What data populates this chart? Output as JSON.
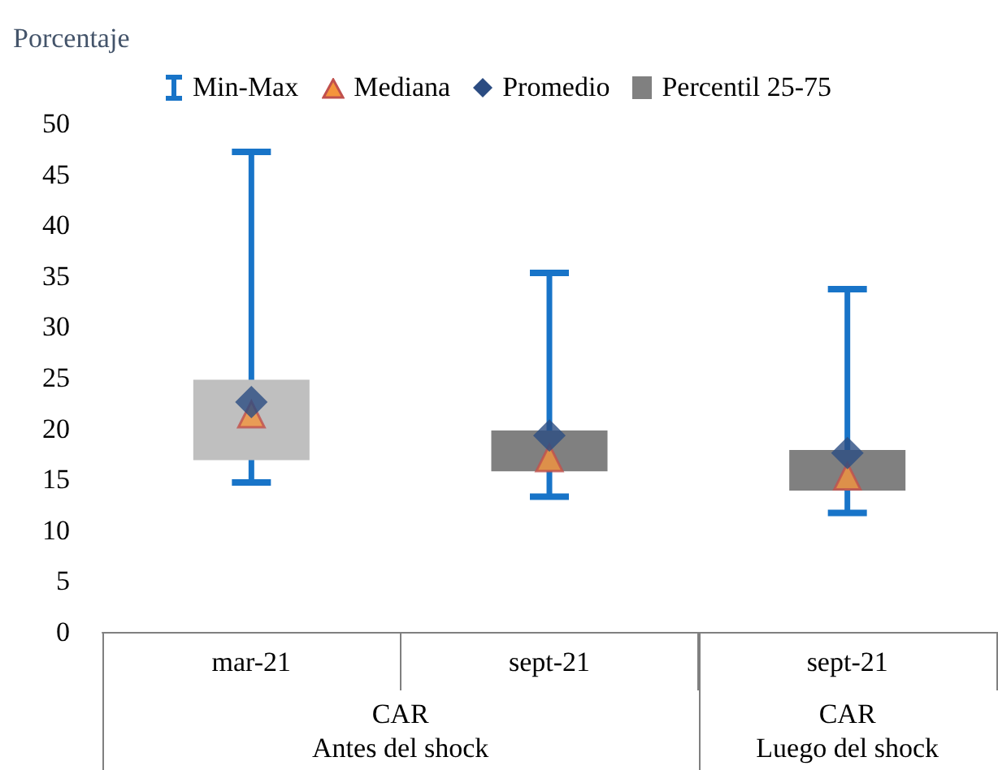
{
  "chart_data": {
    "type": "box",
    "ylabel": "Porcentaje",
    "categories": [
      "mar-21",
      "sept-21",
      "sept-21"
    ],
    "annotations": [
      "Min-Max",
      "CAR\nAntes del shock",
      "CAR\nLuego del shock"
    ],
    "series": [
      {
        "name": "Percentil 25-75",
        "color": "#1874c8",
        "colors": [
          "#bfbfbf",
          "#808080",
          "#808080"
        ],
        "boxes": [
          {
            "low": 14.7,
            "q1": 16.9,
            "q3": 24.8,
            "high": 47.2
          },
          {
            "low": 13.3,
            "q1": 15.8,
            "q3": 19.8,
            "high": 35.3
          },
          {
            "low": 11.7,
            "q1": 13.9,
            "q3": 17.9,
            "high": 33.7
          }
        ]
      },
      {
        "name": "Mediana",
        "type": "scatter",
        "color": "#f4943c",
        "marker": "triangle",
        "values": [
          21.4,
          17.1,
          15.3
        ]
      },
      {
        "name": "Promedio",
        "type": "scatter",
        "color": "#2b4c82",
        "marker": "diamond",
        "values": [
          22.6,
          19.3,
          17.6
        ]
      }
    ],
    "ylim": [
      0,
      50
    ],
    "yticks": [
      0,
      5,
      10,
      15,
      20,
      25,
      30,
      35,
      40,
      45,
      50
    ],
    "grid": false,
    "legend": "top"
  }
}
